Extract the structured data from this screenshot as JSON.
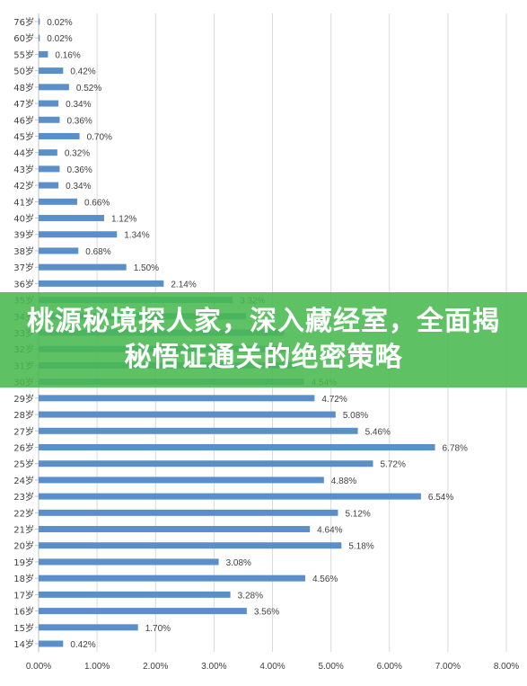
{
  "banner": {
    "title": "桃源秘境探人家，深入藏经室，全面揭秘悟证通关的绝密策略"
  },
  "colors": {
    "bar": "#5b8fc9",
    "grid": "#d9d9d9",
    "banner": "#48b950",
    "text": "#404040"
  },
  "chart_data": {
    "type": "bar",
    "orientation": "horizontal",
    "categories": [
      "76岁",
      "60岁",
      "55岁",
      "50岁",
      "48岁",
      "47岁",
      "46岁",
      "45岁",
      "44岁",
      "43岁",
      "42岁",
      "41岁",
      "40岁",
      "39岁",
      "38岁",
      "37岁",
      "36岁",
      "35岁",
      "34岁",
      "33岁",
      "32岁",
      "31岁",
      "30岁",
      "29岁",
      "28岁",
      "27岁",
      "26岁",
      "25岁",
      "24岁",
      "23岁",
      "22岁",
      "21岁",
      "20岁",
      "19岁",
      "18岁",
      "17岁",
      "16岁",
      "15岁",
      "14岁"
    ],
    "values": [
      0.02,
      0.02,
      0.16,
      0.42,
      0.52,
      0.34,
      0.36,
      0.7,
      0.32,
      0.36,
      0.34,
      0.66,
      1.12,
      1.34,
      0.68,
      1.5,
      2.14,
      3.32,
      3.55,
      4.2,
      4.3,
      4.4,
      4.54,
      4.72,
      5.08,
      5.46,
      6.78,
      5.72,
      4.88,
      6.54,
      5.12,
      4.64,
      5.18,
      3.08,
      4.56,
      3.28,
      3.56,
      1.7,
      0.42
    ],
    "labels": [
      "0.02%",
      "0.02%",
      "0.16%",
      "0.42%",
      "0.52%",
      "0.34%",
      "0.36%",
      "0.70%",
      "0.32%",
      "0.36%",
      "0.34%",
      "0.66%",
      "1.12%",
      "1.34%",
      "0.68%",
      "1.50%",
      "2.14%",
      "3.32%",
      "",
      "",
      "",
      "",
      "4.54%",
      "4.72%",
      "5.08%",
      "5.46%",
      "6.78%",
      "5.72%",
      "4.88%",
      "6.54%",
      "5.12%",
      "4.64%",
      "5.18%",
      "3.08%",
      "4.56%",
      "3.28%",
      "3.56%",
      "1.70%",
      "0.42%"
    ],
    "xlim": [
      0,
      8
    ],
    "xticks": [
      "0.00%",
      "1.00%",
      "2.00%",
      "3.00%",
      "4.00%",
      "5.00%",
      "6.00%",
      "7.00%",
      "8.00%"
    ],
    "title": "",
    "xlabel": "",
    "ylabel": "",
    "grid": "vertical",
    "legend": "none"
  }
}
